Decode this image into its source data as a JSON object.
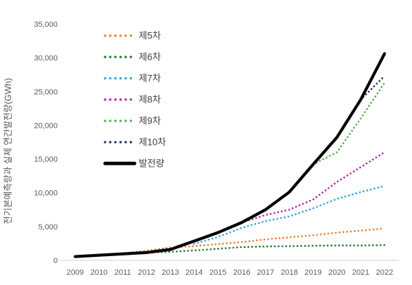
{
  "chart_data": {
    "type": "line",
    "title": "",
    "ylabel": "전기본예측량과 실제 연간발전량(GWh)",
    "xlabel": "",
    "grid": false,
    "legend_position": "upper-left-inside",
    "x_tick_labels": [
      "2009",
      "2010",
      "2011",
      "2012",
      "2013",
      "2014",
      "2015",
      "2016",
      "2017",
      "2018",
      "2019",
      "2020",
      "2021",
      "2022"
    ],
    "y_tick_labels": [
      "0",
      "5,000",
      "10,000",
      "15,000",
      "20,000",
      "25,000",
      "30,000",
      "35,000"
    ],
    "y_tick_values": [
      0,
      5000,
      10000,
      15000,
      20000,
      25000,
      30000,
      35000
    ],
    "xlim": [
      2009,
      2022
    ],
    "ylim": [
      0,
      35000
    ],
    "series": [
      {
        "name": "제5차",
        "style": "dotted",
        "color": "#ED7D31",
        "data": [
          [
            2010,
            700
          ],
          [
            2011,
            1000
          ],
          [
            2012,
            1400
          ],
          [
            2013,
            1900
          ],
          [
            2014,
            2100
          ],
          [
            2015,
            2400
          ],
          [
            2016,
            2700
          ],
          [
            2017,
            3100
          ],
          [
            2018,
            3400
          ],
          [
            2019,
            3700
          ],
          [
            2020,
            4100
          ],
          [
            2021,
            4400
          ],
          [
            2022,
            4700
          ]
        ]
      },
      {
        "name": "제6차",
        "style": "dotted",
        "color": "#217B33",
        "data": [
          [
            2012,
            1150
          ],
          [
            2013,
            1250
          ],
          [
            2014,
            1450
          ],
          [
            2015,
            1700
          ],
          [
            2016,
            1950
          ],
          [
            2017,
            2050
          ],
          [
            2018,
            2100
          ],
          [
            2019,
            2150
          ],
          [
            2020,
            2200
          ],
          [
            2021,
            2200
          ],
          [
            2022,
            2250
          ]
        ]
      },
      {
        "name": "제7차",
        "style": "dotted",
        "color": "#33A2DB",
        "data": [
          [
            2014,
            2450
          ],
          [
            2015,
            3450
          ],
          [
            2016,
            4800
          ],
          [
            2017,
            5800
          ],
          [
            2018,
            6500
          ],
          [
            2019,
            7700
          ],
          [
            2020,
            9100
          ],
          [
            2021,
            10100
          ],
          [
            2022,
            11000
          ]
        ]
      },
      {
        "name": "제8차",
        "style": "dotted",
        "color": "#AE2BA4",
        "data": [
          [
            2016,
            5600
          ],
          [
            2017,
            6700
          ],
          [
            2018,
            7500
          ],
          [
            2019,
            9000
          ],
          [
            2020,
            11600
          ],
          [
            2021,
            13800
          ],
          [
            2022,
            16000
          ]
        ]
      },
      {
        "name": "제9차",
        "style": "dotted",
        "color": "#53B254",
        "data": [
          [
            2019,
            14200
          ],
          [
            2020,
            16000
          ],
          [
            2021,
            21000
          ],
          [
            2022,
            26300
          ]
        ]
      },
      {
        "name": "제10차",
        "style": "dotted",
        "color": "#203864",
        "data": [
          [
            2021,
            23800
          ],
          [
            2022,
            27300
          ]
        ]
      },
      {
        "name": "발전량",
        "style": "solid",
        "color": "#000000",
        "data": [
          [
            2009,
            550
          ],
          [
            2010,
            750
          ],
          [
            2011,
            950
          ],
          [
            2012,
            1150
          ],
          [
            2013,
            1600
          ],
          [
            2014,
            2850
          ],
          [
            2015,
            4100
          ],
          [
            2016,
            5600
          ],
          [
            2017,
            7500
          ],
          [
            2018,
            10100
          ],
          [
            2019,
            14200
          ],
          [
            2020,
            18200
          ],
          [
            2021,
            23800
          ],
          [
            2022,
            30600
          ]
        ]
      }
    ],
    "axis_text_color": "#595959",
    "legend_text_color": "#3f3f3f",
    "axis_line_color": "#d9d9d9"
  }
}
